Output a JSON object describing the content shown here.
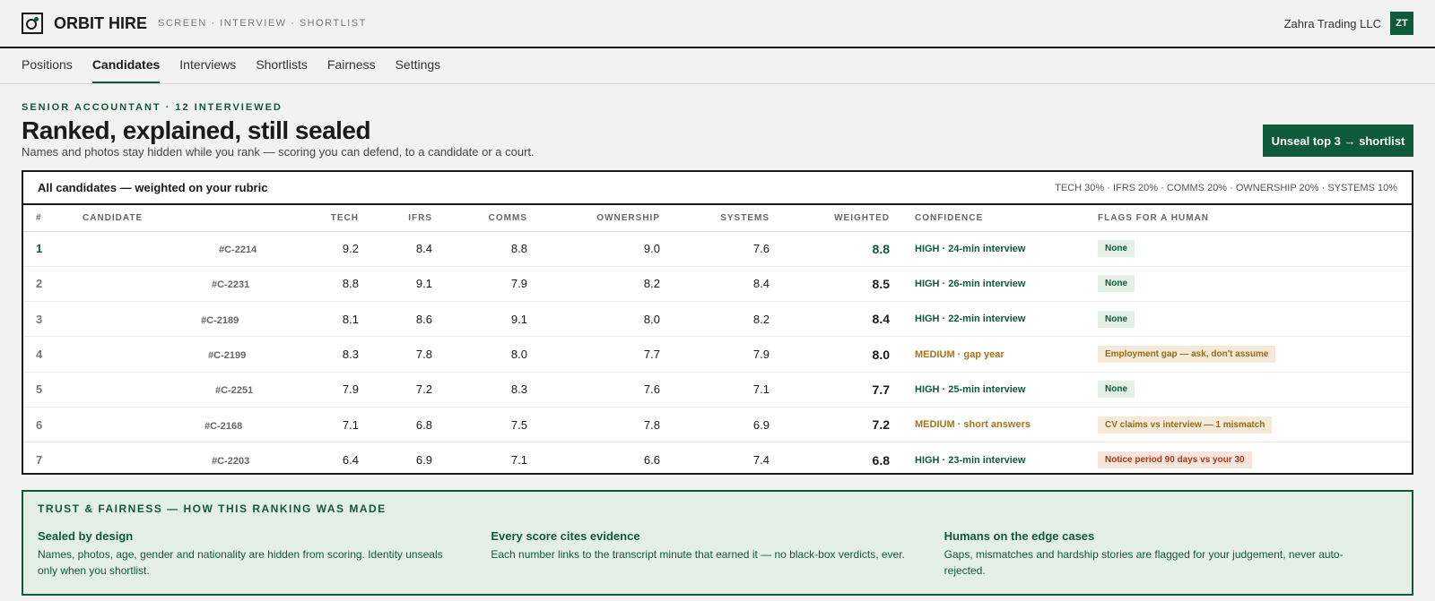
{
  "header": {
    "brand": "ORBIT HIRE",
    "tagline": "SCREEN · INTERVIEW · SHORTLIST",
    "org": "Zahra Trading LLC",
    "avatar_initials": "ZT"
  },
  "nav": {
    "tabs": [
      {
        "label": "Positions"
      },
      {
        "label": "Candidates"
      },
      {
        "label": "Interviews"
      },
      {
        "label": "Shortlists"
      },
      {
        "label": "Fairness"
      },
      {
        "label": "Settings"
      }
    ],
    "active": "Candidates"
  },
  "hero": {
    "eyebrow": "SENIOR ACCOUNTANT · 12 INTERVIEWED",
    "title": "Ranked, explained, still sealed",
    "subtitle": "Names and photos stay hidden while you rank — scoring you can defend, to a candidate or a court.",
    "cta_label": "Unseal top 3 → shortlist"
  },
  "table": {
    "title": "All candidates — weighted on your rubric",
    "weights": "TECH 30% · IFRS 20% · COMMS 20% · OWNERSHIP 20% · SYSTEMS 10%",
    "columns": {
      "rank": "#",
      "candidate": "CANDIDATE",
      "tech": "TECH",
      "ifrs": "IFRS",
      "comms": "COMMS",
      "ownership": "OWNERSHIP",
      "systems": "SYSTEMS",
      "weighted": "WEIGHTED",
      "confidence": "CONFIDENCE",
      "flags": "FLAGS FOR A HUMAN"
    },
    "rows": [
      {
        "rank": "1",
        "id": "#C-2214",
        "tech": "9.2",
        "ifrs": "8.4",
        "comms": "8.8",
        "ownership": "9.0",
        "systems": "7.6",
        "weighted": "8.8",
        "confidence": "HIGH · 24-min interview",
        "flag": "None"
      },
      {
        "rank": "2",
        "id": "#C-2231",
        "tech": "8.8",
        "ifrs": "9.1",
        "comms": "7.9",
        "ownership": "8.2",
        "systems": "8.4",
        "weighted": "8.5",
        "confidence": "HIGH · 26-min interview",
        "flag": "None"
      },
      {
        "rank": "3",
        "id": "#C-2189",
        "tech": "8.1",
        "ifrs": "8.6",
        "comms": "9.1",
        "ownership": "8.0",
        "systems": "8.2",
        "weighted": "8.4",
        "confidence": "HIGH · 22-min interview",
        "flag": "None"
      },
      {
        "rank": "4",
        "id": "#C-2199",
        "tech": "8.3",
        "ifrs": "7.8",
        "comms": "8.0",
        "ownership": "7.7",
        "systems": "7.9",
        "weighted": "8.0",
        "confidence": "MEDIUM · gap year",
        "flag": "Employment gap — ask, don't assume"
      },
      {
        "rank": "5",
        "id": "#C-2251",
        "tech": "7.9",
        "ifrs": "7.2",
        "comms": "8.3",
        "ownership": "7.6",
        "systems": "7.1",
        "weighted": "7.7",
        "confidence": "HIGH · 25-min interview",
        "flag": "None"
      },
      {
        "rank": "6",
        "id": "#C-2168",
        "tech": "7.1",
        "ifrs": "6.8",
        "comms": "7.5",
        "ownership": "7.8",
        "systems": "6.9",
        "weighted": "7.2",
        "confidence": "MEDIUM · short answers",
        "flag": "CV claims vs interview — 1 mismatch"
      },
      {
        "rank": "7",
        "id": "#C-2203",
        "tech": "6.4",
        "ifrs": "6.9",
        "comms": "7.1",
        "ownership": "6.6",
        "systems": "7.4",
        "weighted": "6.8",
        "confidence": "HIGH · 23-min interview",
        "flag": "Notice period 90 days vs your 30"
      }
    ]
  },
  "trust": {
    "heading": "TRUST & FAIRNESS — HOW THIS RANKING WAS MADE",
    "items": [
      {
        "title": "Sealed by design",
        "text": "Names, photos, age, gender and nationality are hidden from scoring. Identity unseals only when you shortlist."
      },
      {
        "title": "Every score cites evidence",
        "text": "Each number links to the transcript minute that earned it — no black-box verdicts, ever."
      },
      {
        "title": "Humans on the edge cases",
        "text": "Gaps, mismatches and hardship stories are flagged for your judgement, never auto-rejected."
      }
    ]
  },
  "colors": {
    "accent": "#0f5a3a",
    "medium": "#a6731a",
    "alert": "#a5391d"
  }
}
